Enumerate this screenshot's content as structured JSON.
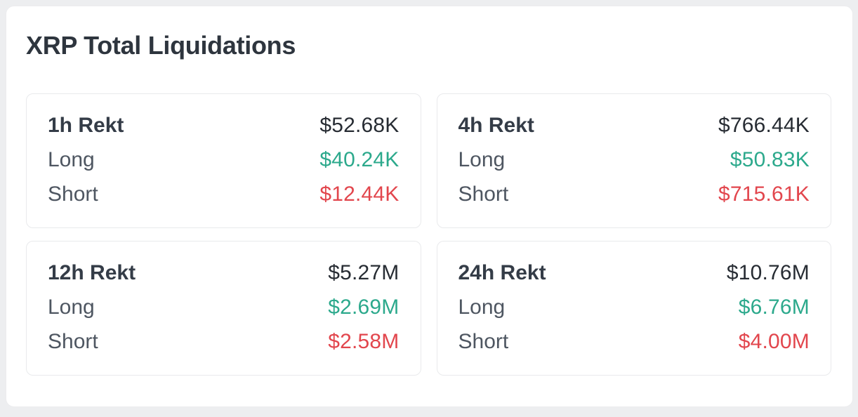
{
  "title": "XRP Total Liquidations",
  "colors": {
    "long": "#2ca98c",
    "short": "#e2464d",
    "total_text": "#272c33",
    "label_text": "#4e5661",
    "period_text": "#343c47",
    "title_text": "#2e353e",
    "card_border": "#e9eaec",
    "panel_bg": "#ffffff",
    "page_bg": "#edeef0"
  },
  "cards": [
    {
      "period": "1h Rekt",
      "total": "$52.68K",
      "long_label": "Long",
      "long_value": "$40.24K",
      "short_label": "Short",
      "short_value": "$12.44K"
    },
    {
      "period": "4h Rekt",
      "total": "$766.44K",
      "long_label": "Long",
      "long_value": "$50.83K",
      "short_label": "Short",
      "short_value": "$715.61K"
    },
    {
      "period": "12h Rekt",
      "total": "$5.27M",
      "long_label": "Long",
      "long_value": "$2.69M",
      "short_label": "Short",
      "short_value": "$2.58M"
    },
    {
      "period": "24h Rekt",
      "total": "$10.76M",
      "long_label": "Long",
      "long_value": "$6.76M",
      "short_label": "Short",
      "short_value": "$4.00M"
    }
  ]
}
